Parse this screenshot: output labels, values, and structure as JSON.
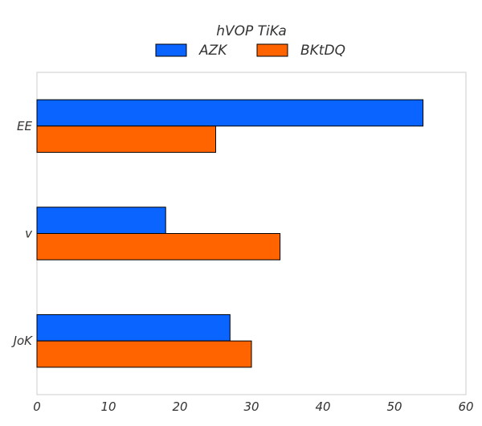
{
  "chart_data": {
    "type": "bar",
    "orientation": "horizontal",
    "categories": [
      "EE",
      "v",
      "JoK"
    ],
    "series": [
      {
        "name": "AZK",
        "values": [
          54,
          18,
          27
        ],
        "color": "#0a64ff"
      },
      {
        "name": "BKtDQ",
        "values": [
          25,
          34,
          30
        ],
        "color": "#ff6400"
      }
    ],
    "xlim": [
      0,
      60
    ],
    "xticks": [
      0,
      10,
      20,
      30,
      40,
      50,
      60
    ],
    "legend": {
      "title": "hVOP TiKa",
      "placement": "top-center"
    },
    "grid": false,
    "title": "",
    "xlabel": "",
    "ylabel": ""
  }
}
